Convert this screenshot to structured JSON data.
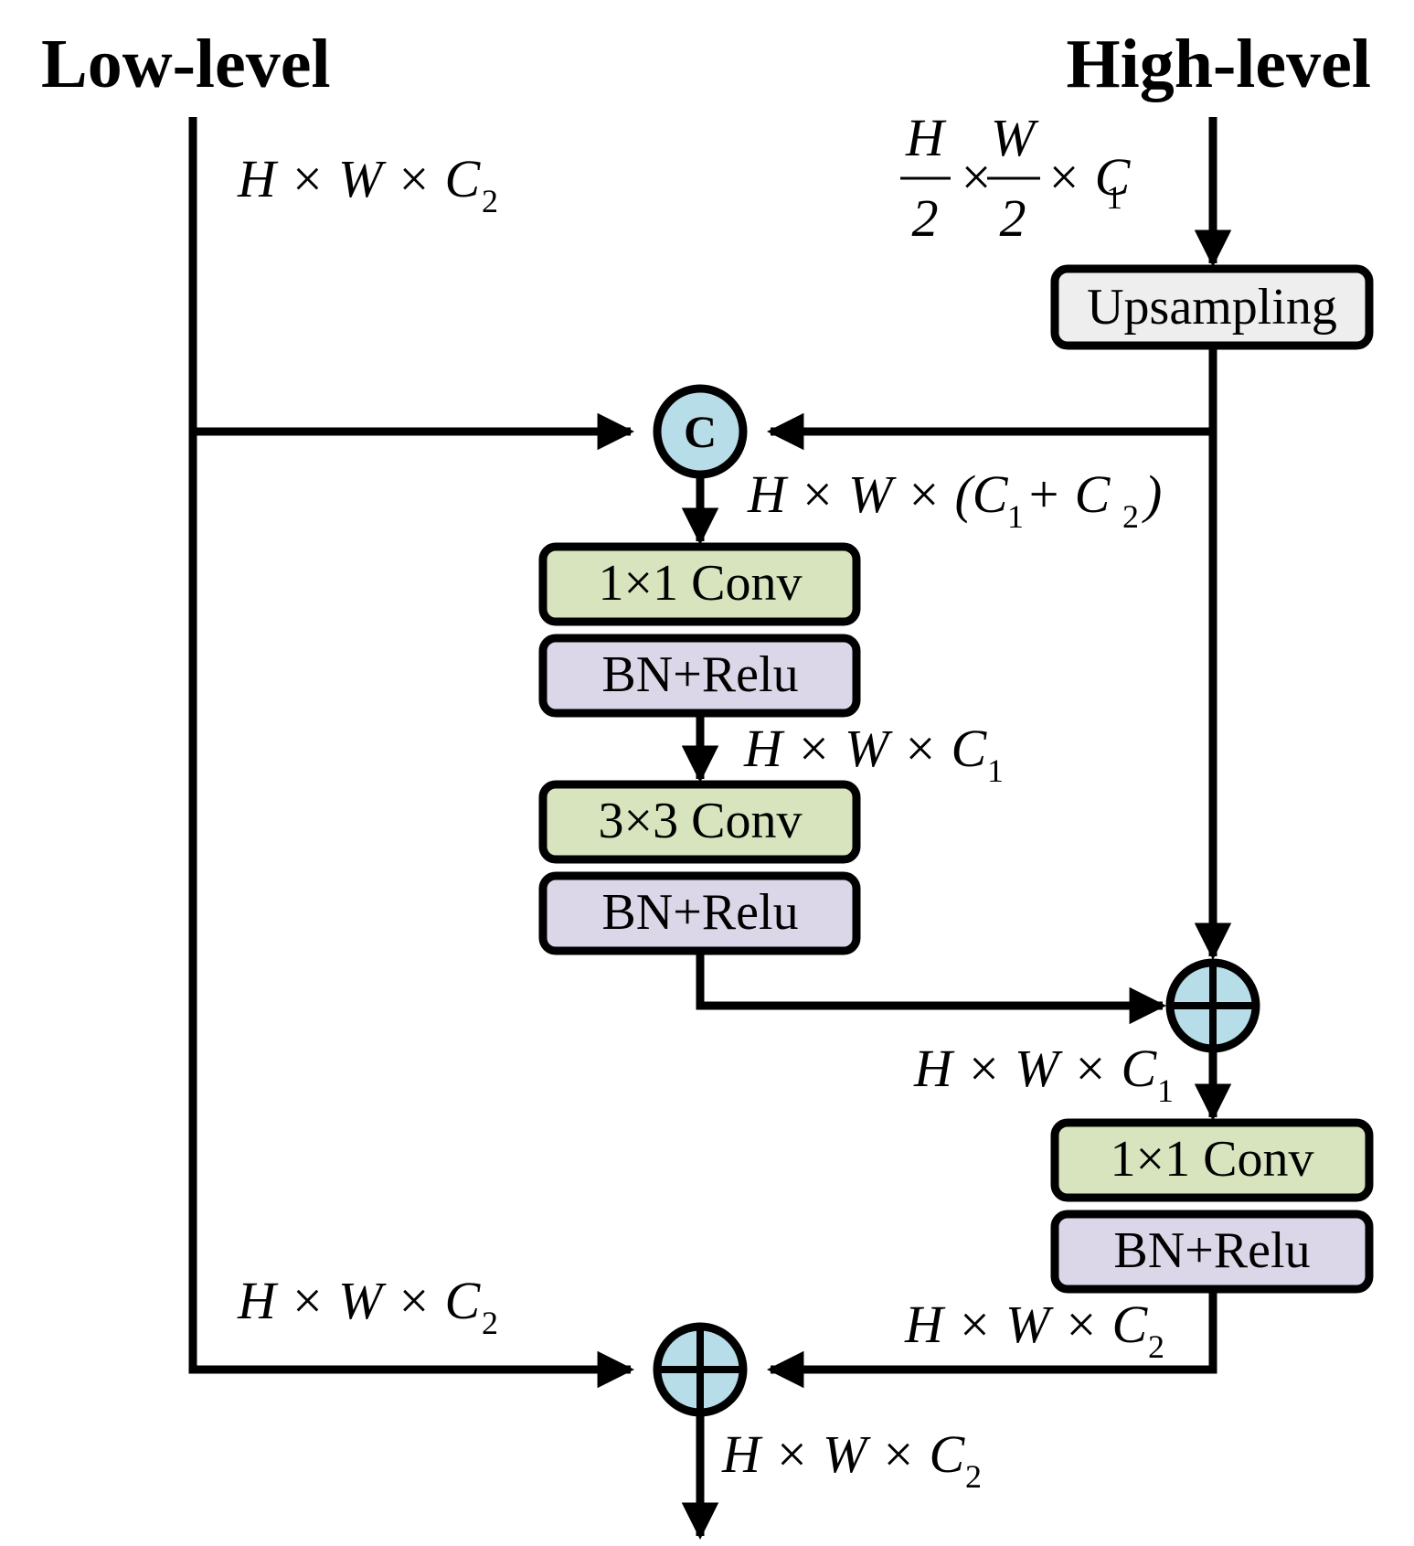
{
  "titles": {
    "low": "Low-level",
    "high": "High-level"
  },
  "colors": {
    "conv": "#d7e4bd",
    "bn": "#dcd7e8",
    "upsample": "#eeeeee",
    "node": "#b7dde8"
  },
  "blocks": {
    "upsampling": "Upsampling",
    "conv1": "1×1 Conv",
    "bn1": "BN+Relu",
    "conv3": "3×3 Conv",
    "bn2": "BN+Relu",
    "conv_out": "1×1 Conv",
    "bn_out": "BN+Relu"
  },
  "nodes": {
    "concat": "C"
  },
  "dims": {
    "low_in": {
      "base": "H × W × C",
      "sub": "2"
    },
    "high_in": {
      "h": "H",
      "two_a": "2",
      "w": "W",
      "two_b": "2",
      "tail": "× C",
      "times": "×",
      "sub": "1"
    },
    "concat_out": {
      "base": "H × W × (C",
      "sub1": "1",
      "plus": " + C",
      "sub2": "2",
      "close": ")"
    },
    "bn1_out": {
      "base": "H × W × C",
      "sub": "1"
    },
    "add_out": {
      "base": "H × W × C",
      "sub": "1"
    },
    "low_skip": {
      "base": "H × W × C",
      "sub": "2"
    },
    "bn_out_dim": {
      "base": "H × W × C",
      "sub": "2"
    },
    "final": {
      "base": "H × W × C",
      "sub": "2"
    }
  }
}
